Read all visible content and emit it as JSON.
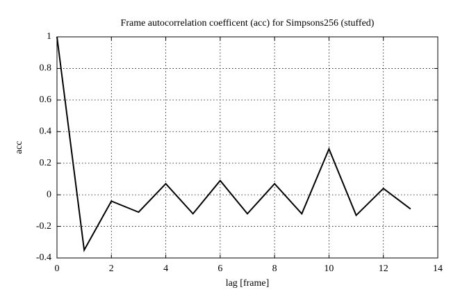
{
  "chart_data": {
    "type": "line",
    "title": "Frame autocorrelation coefficent (acc) for Simpsons256 (stuffed)",
    "x_label": "lag [frame]",
    "y_label": "acc",
    "x": [
      0,
      1,
      2,
      3,
      4,
      5,
      6,
      7,
      8,
      9,
      10,
      11,
      12,
      13
    ],
    "series": [
      {
        "color": "#000000",
        "values": [
          1,
          -0.35,
          -0.04,
          -0.11,
          0.07,
          -0.12,
          0.09,
          -0.12,
          0.07,
          -0.12,
          0.29,
          -0.13,
          0.04,
          -0.09
        ]
      }
    ],
    "xlim": [
      0,
      14
    ],
    "xticks": [
      0,
      2,
      4,
      6,
      8,
      10,
      12,
      14
    ],
    "ylim": [
      -0.4,
      1
    ],
    "yticks": [
      -0.4,
      -0.2,
      0,
      0.2,
      0.4,
      0.6,
      0.8,
      1
    ],
    "grid": true
  }
}
